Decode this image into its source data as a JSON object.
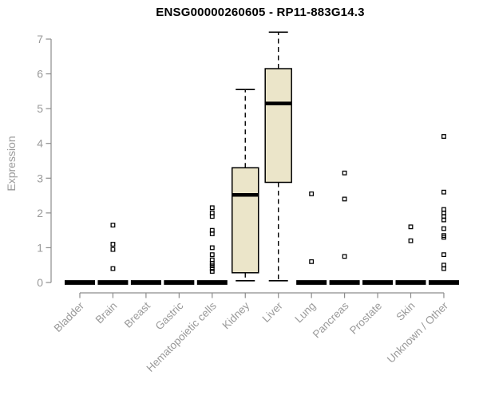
{
  "chart_data": {
    "type": "boxplot",
    "title": "ENSG00000260605 - RP11-883G14.3",
    "ylabel": "Expression",
    "xlabel": "",
    "ylim": [
      0,
      7
    ],
    "yticks": [
      "0",
      "1",
      "2",
      "3",
      "4",
      "5",
      "6",
      "7"
    ],
    "legend": "none",
    "grid": false,
    "colors": {
      "box_fill": "#EBE5C9",
      "box_stroke": "#000000",
      "median": "#000000",
      "whisker": "#000000",
      "outlier": "#000000",
      "axis_line": "#8c8c8c",
      "tick_label": "#9a9a9a",
      "title": "#000000",
      "background": "#ffffff"
    },
    "categories": [
      "Bladder",
      "Brain",
      "Breast",
      "Gastric",
      "Hematopoietic cells",
      "Kidney",
      "Liver",
      "Lung",
      "Pancreas",
      "Prostate",
      "Skin",
      "Unknown / Other"
    ],
    "boxes": [
      {
        "category": "Bladder",
        "low": 0,
        "q1": 0,
        "median": 0,
        "q3": 0,
        "high": 0,
        "outliers": []
      },
      {
        "category": "Brain",
        "low": 0,
        "q1": 0,
        "median": 0,
        "q3": 0,
        "high": 0,
        "outliers": [
          1.65,
          1.1,
          0.95,
          0.4
        ]
      },
      {
        "category": "Breast",
        "low": 0,
        "q1": 0,
        "median": 0,
        "q3": 0,
        "high": 0,
        "outliers": []
      },
      {
        "category": "Gastric",
        "low": 0,
        "q1": 0,
        "median": 0,
        "q3": 0,
        "high": 0,
        "outliers": []
      },
      {
        "category": "Hematopoietic cells",
        "low": 0,
        "q1": 0,
        "median": 0,
        "q3": 0,
        "high": 0,
        "outliers": [
          2.15,
          2.0,
          1.9,
          1.5,
          1.4,
          1.0,
          0.8,
          0.65,
          0.55,
          0.48,
          0.4,
          0.32
        ]
      },
      {
        "category": "Kidney",
        "low": 0.05,
        "q1": 0.28,
        "median": 2.52,
        "q3": 3.3,
        "high": 5.55,
        "outliers": []
      },
      {
        "category": "Liver",
        "low": 0.05,
        "q1": 2.88,
        "median": 5.15,
        "q3": 6.15,
        "high": 7.2,
        "outliers": []
      },
      {
        "category": "Lung",
        "low": 0,
        "q1": 0,
        "median": 0,
        "q3": 0,
        "high": 0,
        "outliers": [
          2.55,
          0.6
        ]
      },
      {
        "category": "Pancreas",
        "low": 0,
        "q1": 0,
        "median": 0,
        "q3": 0,
        "high": 0,
        "outliers": [
          3.15,
          2.4,
          0.75
        ]
      },
      {
        "category": "Prostate",
        "low": 0,
        "q1": 0,
        "median": 0,
        "q3": 0,
        "high": 0,
        "outliers": []
      },
      {
        "category": "Skin",
        "low": 0,
        "q1": 0,
        "median": 0,
        "q3": 0,
        "high": 0,
        "outliers": [
          1.6,
          1.2
        ]
      },
      {
        "category": "Unknown / Other",
        "low": 0,
        "q1": 0,
        "median": 0,
        "q3": 0,
        "high": 0,
        "outliers": [
          4.2,
          2.6,
          2.1,
          2.0,
          1.9,
          1.8,
          1.55,
          1.35,
          1.3,
          0.8,
          0.5,
          0.4
        ]
      }
    ]
  }
}
